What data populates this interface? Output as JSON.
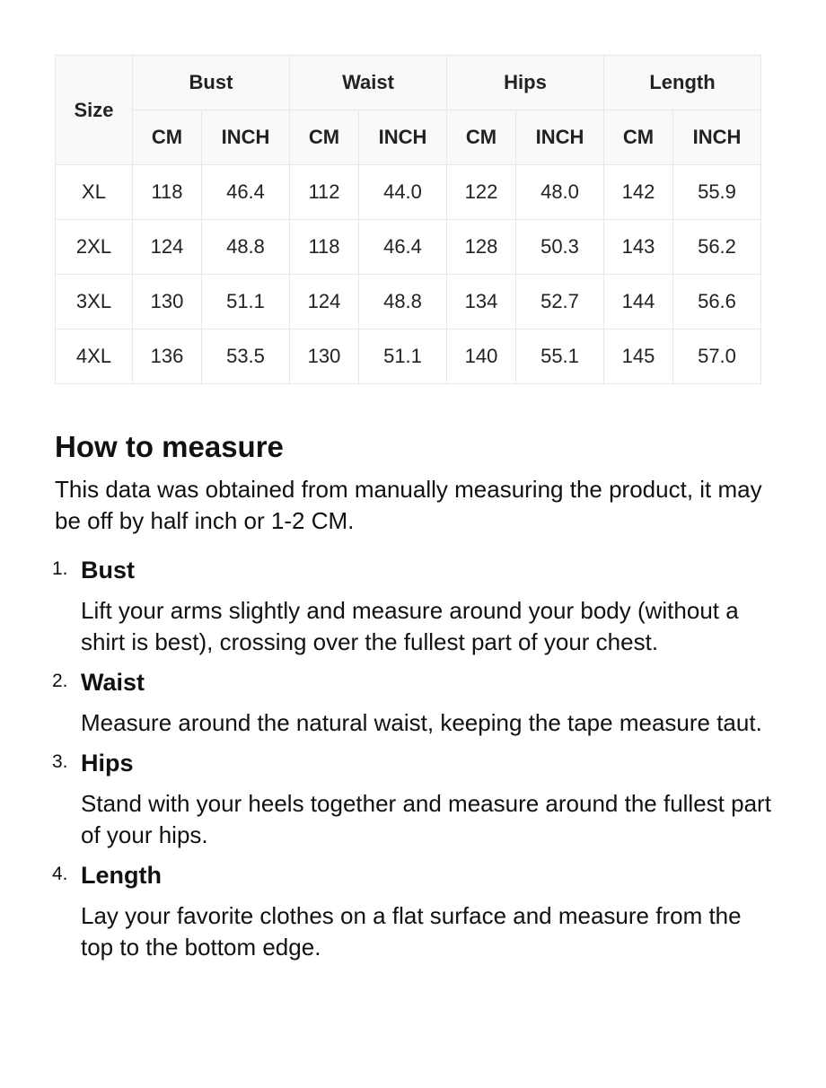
{
  "table": {
    "size_header": "Size",
    "groups": [
      "Bust",
      "Waist",
      "Hips",
      "Length"
    ],
    "units": [
      "CM",
      "INCH"
    ],
    "rows": [
      [
        "XL",
        "118",
        "46.4",
        "112",
        "44.0",
        "122",
        "48.0",
        "142",
        "55.9"
      ],
      [
        "2XL",
        "124",
        "48.8",
        "118",
        "46.4",
        "128",
        "50.3",
        "143",
        "56.2"
      ],
      [
        "3XL",
        "130",
        "51.1",
        "124",
        "48.8",
        "134",
        "52.7",
        "144",
        "56.6"
      ],
      [
        "4XL",
        "136",
        "53.5",
        "130",
        "51.1",
        "140",
        "55.1",
        "145",
        "57.0"
      ]
    ]
  },
  "guide": {
    "title": "How to measure",
    "intro": "This data was obtained from manually measuring the product, it may be off by half inch or 1-2 CM.",
    "steps": [
      {
        "num": "1.",
        "title": "Bust",
        "desc": "Lift your arms slightly and measure around your body (without a shirt is best), crossing over the fullest part of your chest."
      },
      {
        "num": "2.",
        "title": "Waist",
        "desc": "Measure around the natural waist, keeping the tape measure taut."
      },
      {
        "num": "3.",
        "title": "Hips",
        "desc": "Stand with your heels together and measure around the fullest part of your hips."
      },
      {
        "num": "4.",
        "title": "Length",
        "desc": "Lay your favorite clothes on a flat surface and measure from the top to the bottom edge."
      }
    ]
  }
}
